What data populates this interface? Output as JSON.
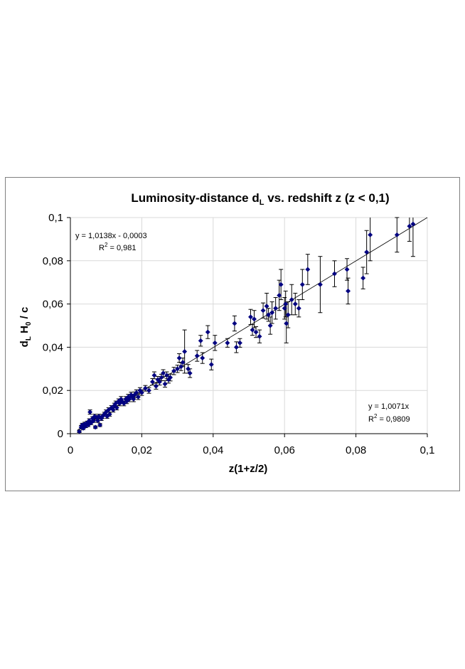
{
  "chart_data": {
    "type": "scatter",
    "title": {
      "main": "Luminosity-distance d",
      "sub": "L",
      "rest": " vs. redshift z (z < 0,1)"
    },
    "xlabel": "z(1+z/2)",
    "ylabel": {
      "a": "d",
      "a_sub": "L",
      "b": " H",
      "b_sub": "0",
      "c": " / c"
    },
    "xlim": [
      0,
      0.1
    ],
    "ylim": [
      0,
      0.1
    ],
    "x_ticks": [
      0,
      0.02,
      0.04,
      0.06,
      0.08,
      0.1
    ],
    "x_tick_labels": [
      "0",
      "0,02",
      "0,04",
      "0,06",
      "0,08",
      "0,1"
    ],
    "y_ticks": [
      0,
      0.02,
      0.04,
      0.06,
      0.08,
      0.1
    ],
    "y_tick_labels": [
      "0",
      "0,02",
      "0,04",
      "0,06",
      "0,08",
      "0,1"
    ],
    "grid": true,
    "marker_color": "#000080",
    "fit_line": {
      "slope": 1.0138,
      "intercept": -0.0003
    },
    "annotations": {
      "fit_left": {
        "eq": "y = 1,0138x - 0,0003",
        "r2_label": "R",
        "r2_exp": "2",
        "r2_value": " = 0,981"
      },
      "fit_right": {
        "eq": "y = 1,0071x",
        "r2_label": "R",
        "r2_exp": "2",
        "r2_value": " = 0,9809"
      }
    },
    "points": [
      [
        0.0025,
        0.001,
        0.0005
      ],
      [
        0.003,
        0.003,
        0.0008
      ],
      [
        0.0033,
        0.004,
        0.0008
      ],
      [
        0.0036,
        0.0025,
        0.0006
      ],
      [
        0.004,
        0.0045,
        0.0008
      ],
      [
        0.0043,
        0.0035,
        0.0007
      ],
      [
        0.0047,
        0.005,
        0.0008
      ],
      [
        0.005,
        0.004,
        0.0007
      ],
      [
        0.0053,
        0.006,
        0.0009
      ],
      [
        0.0055,
        0.01,
        0.001
      ],
      [
        0.0058,
        0.005,
        0.0008
      ],
      [
        0.0062,
        0.007,
        0.0009
      ],
      [
        0.0065,
        0.006,
        0.0008
      ],
      [
        0.0068,
        0.008,
        0.001
      ],
      [
        0.007,
        0.003,
        0.0006
      ],
      [
        0.0073,
        0.0075,
        0.0009
      ],
      [
        0.0077,
        0.006,
        0.0008
      ],
      [
        0.008,
        0.008,
        0.001
      ],
      [
        0.0083,
        0.004,
        0.0007
      ],
      [
        0.0087,
        0.007,
        0.0009
      ],
      [
        0.009,
        0.008,
        0.0009
      ],
      [
        0.0095,
        0.009,
        0.0009
      ],
      [
        0.01,
        0.01,
        0.001
      ],
      [
        0.0103,
        0.008,
        0.0009
      ],
      [
        0.0107,
        0.011,
        0.001
      ],
      [
        0.011,
        0.009,
        0.0009
      ],
      [
        0.0115,
        0.012,
        0.001
      ],
      [
        0.012,
        0.011,
        0.001
      ],
      [
        0.0123,
        0.013,
        0.0011
      ],
      [
        0.0127,
        0.014,
        0.0011
      ],
      [
        0.013,
        0.012,
        0.001
      ],
      [
        0.0135,
        0.015,
        0.0011
      ],
      [
        0.0138,
        0.014,
        0.0011
      ],
      [
        0.0142,
        0.016,
        0.0012
      ],
      [
        0.0145,
        0.015,
        0.0011
      ],
      [
        0.015,
        0.014,
        0.0011
      ],
      [
        0.0155,
        0.016,
        0.0012
      ],
      [
        0.0158,
        0.015,
        0.0011
      ],
      [
        0.0162,
        0.017,
        0.0012
      ],
      [
        0.0165,
        0.016,
        0.0012
      ],
      [
        0.017,
        0.018,
        0.0012
      ],
      [
        0.0173,
        0.017,
        0.0012
      ],
      [
        0.0177,
        0.016,
        0.0012
      ],
      [
        0.018,
        0.018,
        0.0013
      ],
      [
        0.0185,
        0.019,
        0.0013
      ],
      [
        0.019,
        0.017,
        0.0012
      ],
      [
        0.0195,
        0.02,
        0.0013
      ],
      [
        0.02,
        0.019,
        0.0013
      ],
      [
        0.021,
        0.021,
        0.0013
      ],
      [
        0.022,
        0.02,
        0.0013
      ],
      [
        0.023,
        0.024,
        0.0015
      ],
      [
        0.0235,
        0.027,
        0.0016
      ],
      [
        0.024,
        0.022,
        0.0014
      ],
      [
        0.0245,
        0.025,
        0.0015
      ],
      [
        0.025,
        0.024,
        0.0015
      ],
      [
        0.0255,
        0.026,
        0.0015
      ],
      [
        0.026,
        0.028,
        0.0016
      ],
      [
        0.0265,
        0.023,
        0.0015
      ],
      [
        0.027,
        0.027,
        0.0016
      ],
      [
        0.0275,
        0.025,
        0.0016
      ],
      [
        0.028,
        0.026,
        0.0016
      ],
      [
        0.029,
        0.029,
        0.0017
      ],
      [
        0.03,
        0.03,
        0.0017
      ],
      [
        0.0305,
        0.035,
        0.002
      ],
      [
        0.031,
        0.031,
        0.0018
      ],
      [
        0.0315,
        0.033,
        0.002
      ],
      [
        0.032,
        0.038,
        0.01
      ],
      [
        0.033,
        0.03,
        0.002
      ],
      [
        0.0335,
        0.028,
        0.002
      ],
      [
        0.0355,
        0.036,
        0.0025
      ],
      [
        0.0365,
        0.043,
        0.0025
      ],
      [
        0.037,
        0.035,
        0.0025
      ],
      [
        0.0385,
        0.047,
        0.003
      ],
      [
        0.0395,
        0.032,
        0.0025
      ],
      [
        0.0405,
        0.042,
        0.0035
      ],
      [
        0.044,
        0.042,
        0.002
      ],
      [
        0.046,
        0.051,
        0.0035
      ],
      [
        0.0465,
        0.04,
        0.0025
      ],
      [
        0.0475,
        0.042,
        0.002
      ],
      [
        0.0505,
        0.054,
        0.0035
      ],
      [
        0.051,
        0.048,
        0.0025
      ],
      [
        0.0515,
        0.053,
        0.004
      ],
      [
        0.052,
        0.047,
        0.0025
      ],
      [
        0.053,
        0.045,
        0.003
      ],
      [
        0.054,
        0.057,
        0.0035
      ],
      [
        0.055,
        0.059,
        0.006
      ],
      [
        0.0555,
        0.055,
        0.003
      ],
      [
        0.056,
        0.05,
        0.004
      ],
      [
        0.0565,
        0.056,
        0.005
      ],
      [
        0.0575,
        0.058,
        0.005
      ],
      [
        0.0585,
        0.064,
        0.007
      ],
      [
        0.059,
        0.069,
        0.007
      ],
      [
        0.06,
        0.058,
        0.005
      ],
      [
        0.0603,
        0.06,
        0.006
      ],
      [
        0.0605,
        0.051,
        0.009
      ],
      [
        0.061,
        0.055,
        0.006
      ],
      [
        0.062,
        0.062,
        0.007
      ],
      [
        0.063,
        0.06,
        0.005
      ],
      [
        0.064,
        0.058,
        0.004
      ],
      [
        0.065,
        0.069,
        0.007
      ],
      [
        0.0665,
        0.076,
        0.007
      ],
      [
        0.07,
        0.069,
        0.013
      ],
      [
        0.074,
        0.074,
        0.006
      ],
      [
        0.0775,
        0.076,
        0.005
      ],
      [
        0.0778,
        0.066,
        0.006
      ],
      [
        0.082,
        0.072,
        0.005
      ],
      [
        0.083,
        0.084,
        0.01
      ],
      [
        0.084,
        0.092,
        0.012
      ],
      [
        0.0915,
        0.092,
        0.008
      ],
      [
        0.095,
        0.096,
        0.007
      ],
      [
        0.096,
        0.097,
        0.015
      ]
    ]
  }
}
